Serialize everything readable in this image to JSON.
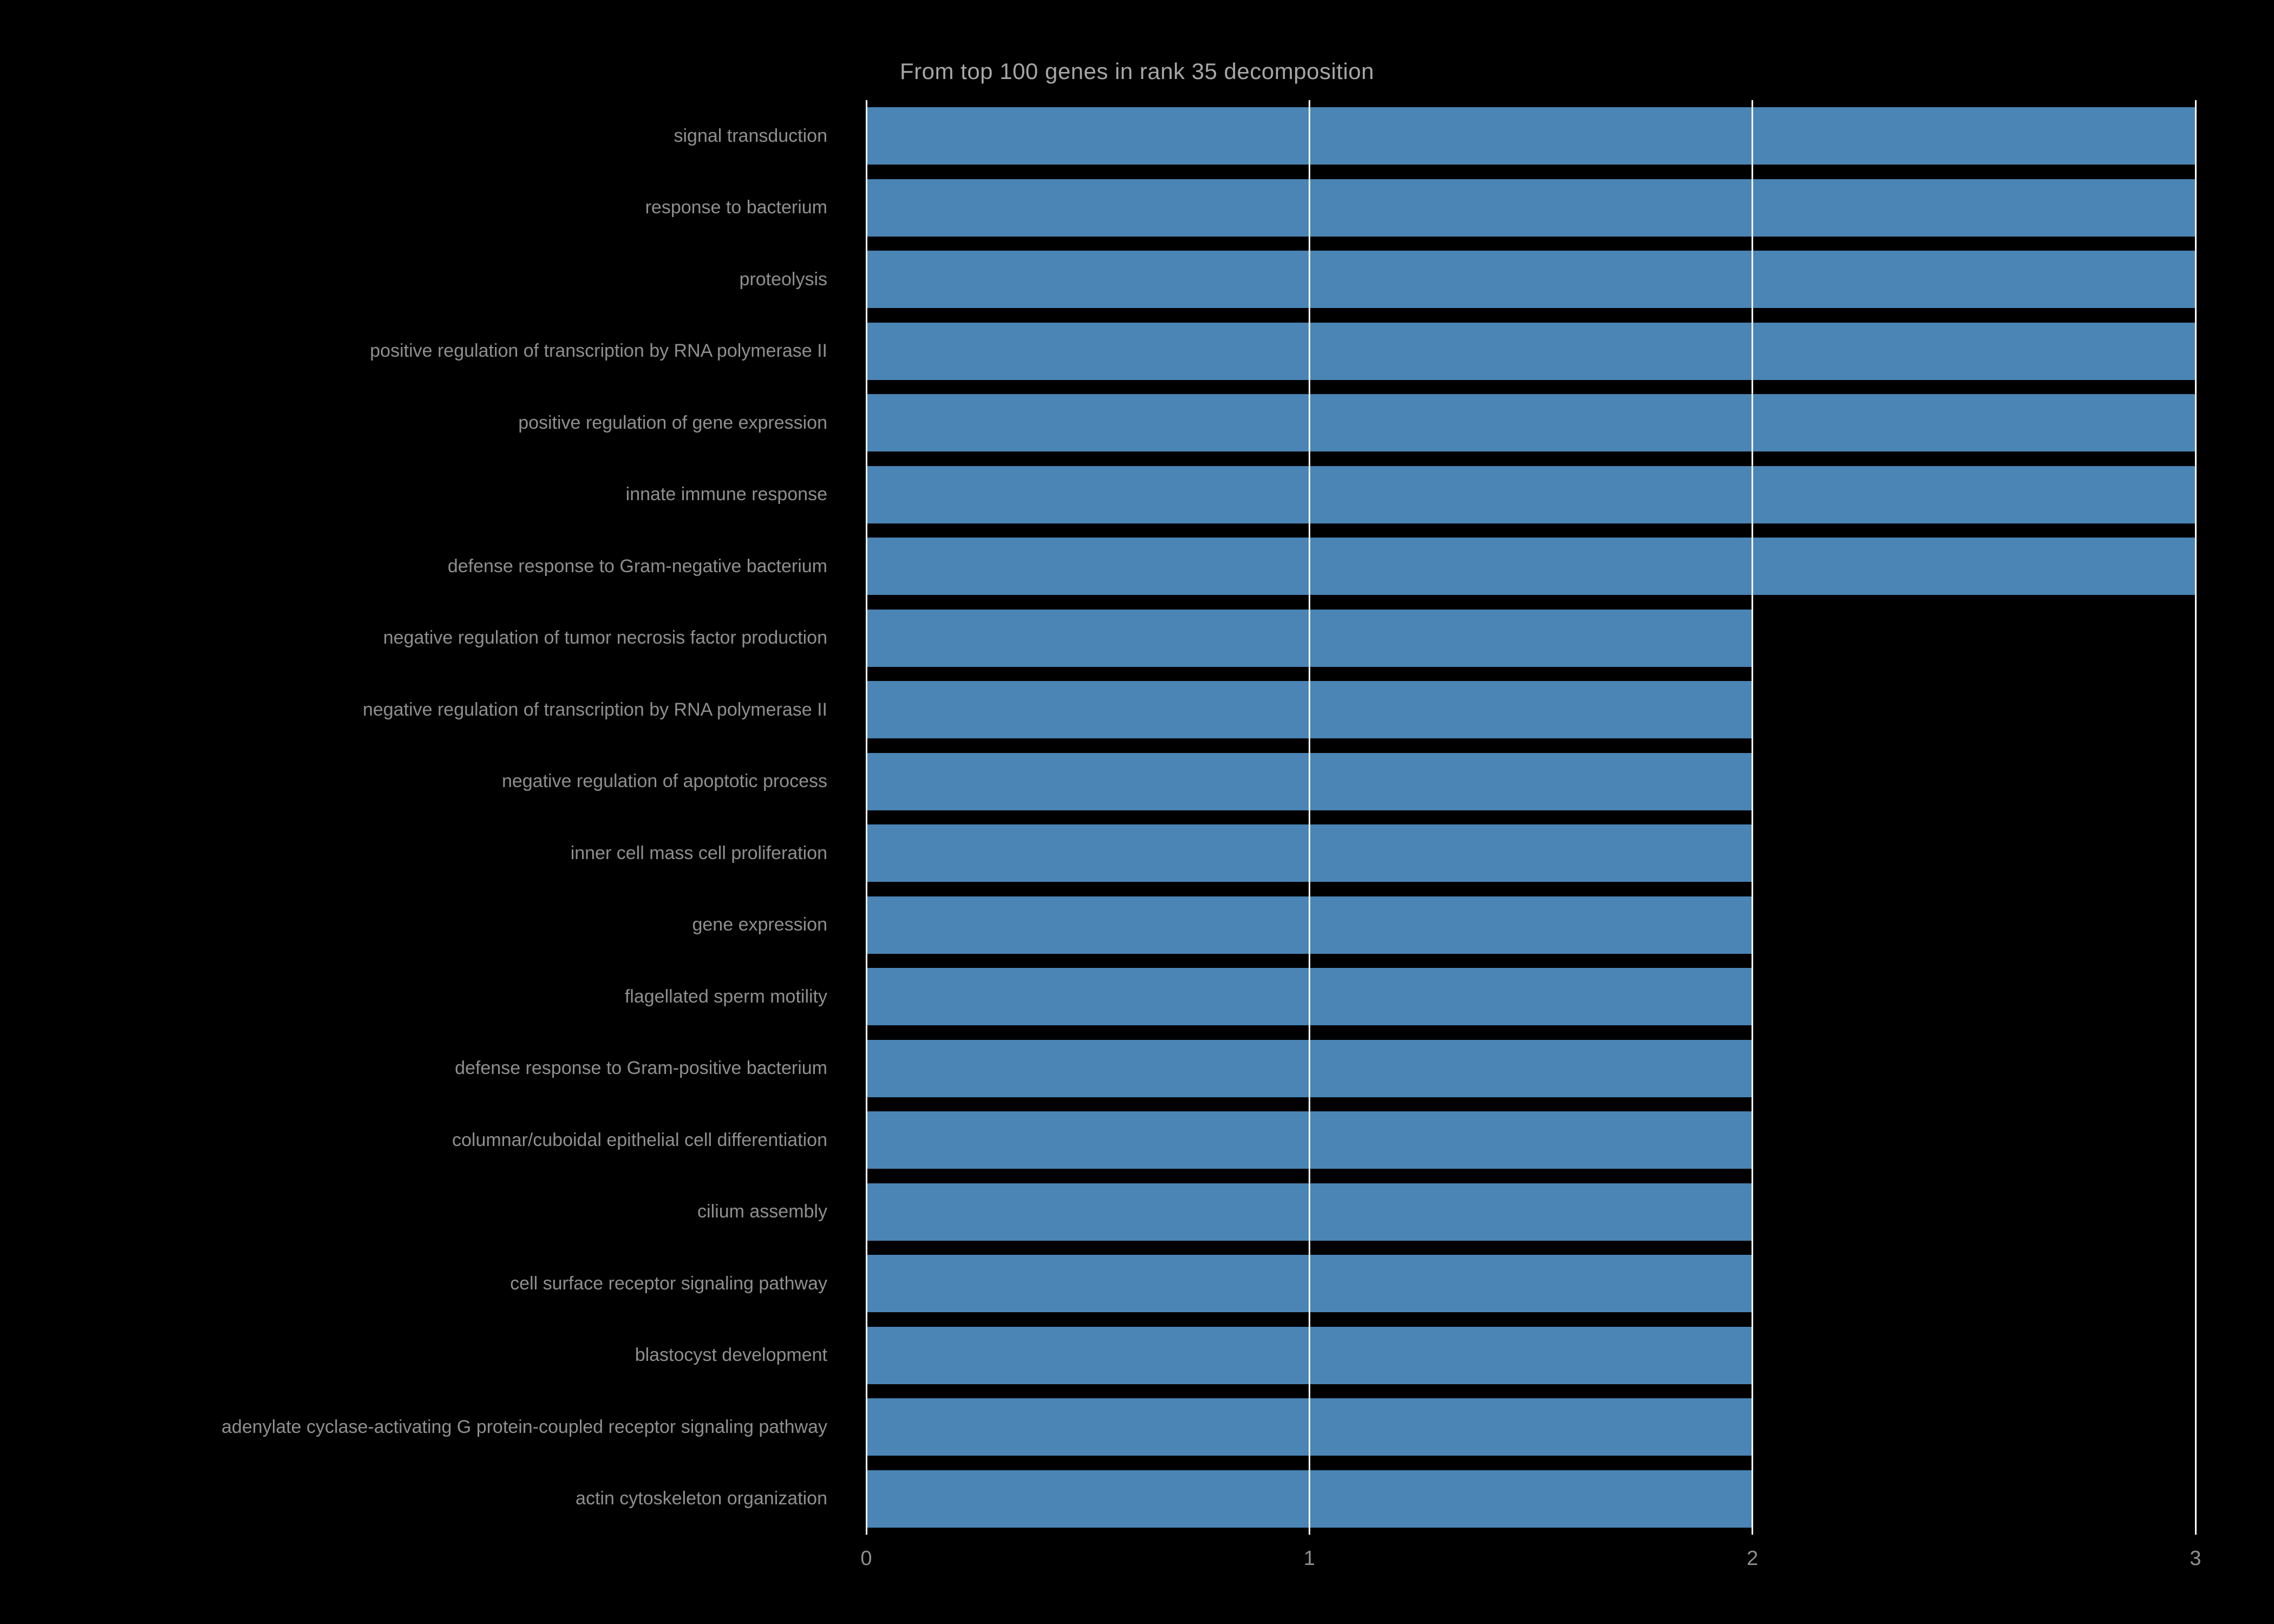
{
  "chart_data": {
    "type": "bar",
    "orientation": "horizontal",
    "title": "From top 100 genes in rank 35 decomposition",
    "categories": [
      "signal transduction",
      "response to bacterium",
      "proteolysis",
      "positive regulation of transcription by RNA polymerase II",
      "positive regulation of gene expression",
      "innate immune response",
      "defense response to Gram-negative bacterium",
      "negative regulation of tumor necrosis factor production",
      "negative regulation of transcription by RNA polymerase II",
      "negative regulation of apoptotic process",
      "inner cell mass cell proliferation",
      "gene expression",
      "flagellated sperm motility",
      "defense response to Gram-positive bacterium",
      "columnar/cuboidal epithelial cell differentiation",
      "cilium assembly",
      "cell surface receptor signaling pathway",
      "blastocyst development",
      "adenylate cyclase-activating G protein-coupled receptor signaling pathway",
      "actin cytoskeleton organization"
    ],
    "values": [
      3,
      3,
      3,
      3,
      3,
      3,
      3,
      2,
      2,
      2,
      2,
      2,
      2,
      2,
      2,
      2,
      2,
      2,
      2,
      2
    ],
    "xlabel": "",
    "ylabel": "",
    "xlim": [
      0,
      3
    ],
    "xticks": [
      0,
      1,
      2,
      3
    ],
    "grid": true,
    "legend": false,
    "bar_color": "#4a85b5",
    "background_color": "#000000",
    "grid_color": "#ffffff",
    "title_color": "#a6a6a6",
    "label_color": "#8f8f8f"
  }
}
